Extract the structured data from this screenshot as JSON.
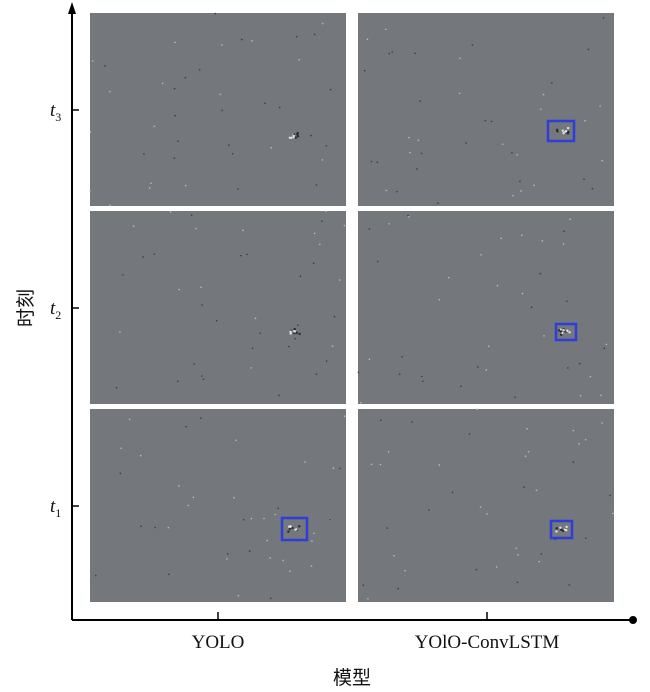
{
  "axes": {
    "y_label": "时刻",
    "x_label": "模型"
  },
  "columns": [
    "YOLO",
    "YOlO-ConvLSTM"
  ],
  "rows": [
    {
      "symbol": "t",
      "subscript": "3"
    },
    {
      "symbol": "t",
      "subscript": "2"
    },
    {
      "symbol": "t",
      "subscript": "1"
    }
  ]
}
